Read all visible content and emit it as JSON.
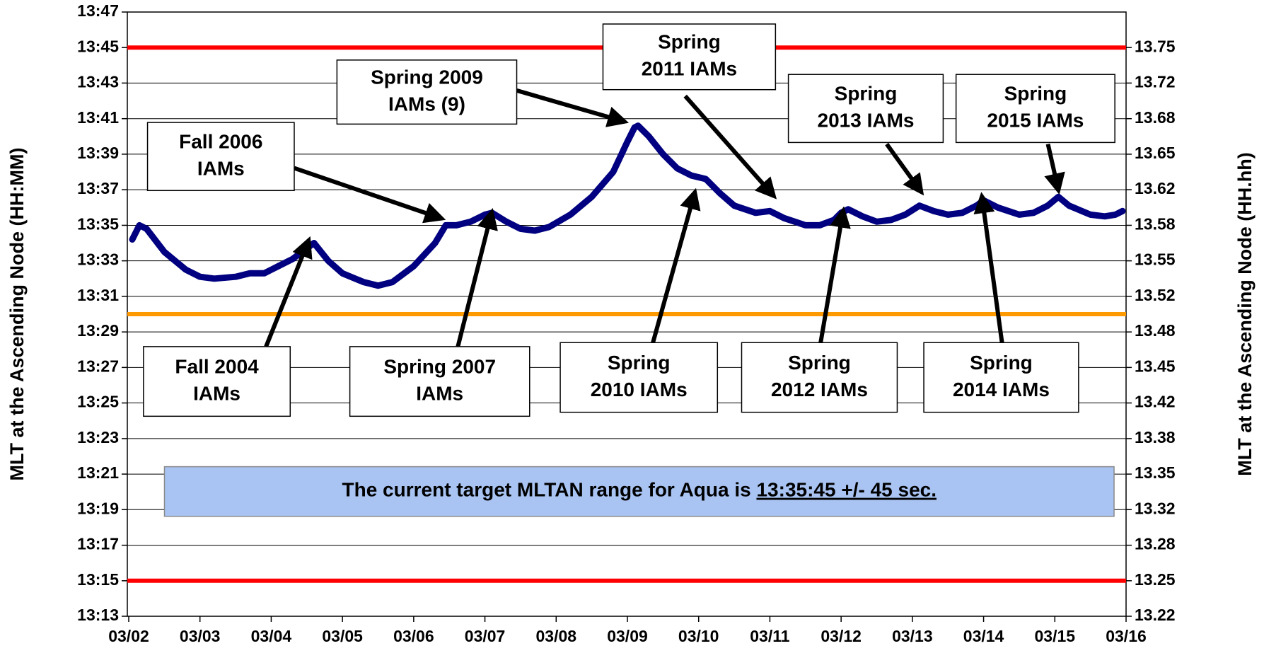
{
  "chart_data": {
    "type": "line",
    "ylabel": "MLT at the Ascending Node (HH:MM)",
    "y2label": "MLT at the Ascending Node (HH.hh)",
    "xlim": [
      0,
      14
    ],
    "xticks": [
      {
        "value": 0,
        "label": "03/02"
      },
      {
        "value": 1,
        "label": "03/03"
      },
      {
        "value": 2,
        "label": "03/04"
      },
      {
        "value": 3,
        "label": "03/05"
      },
      {
        "value": 4,
        "label": "03/06"
      },
      {
        "value": 5,
        "label": "03/07"
      },
      {
        "value": 6,
        "label": "03/08"
      },
      {
        "value": 7,
        "label": "03/09"
      },
      {
        "value": 8,
        "label": "03/10"
      },
      {
        "value": 9,
        "label": "03/11"
      },
      {
        "value": 10,
        "label": "03/12"
      },
      {
        "value": 11,
        "label": "03/13"
      },
      {
        "value": 12,
        "label": "03/14"
      },
      {
        "value": 13,
        "label": "03/15"
      },
      {
        "value": 14,
        "label": "03/16"
      }
    ],
    "ylim": [
      13.2167,
      13.7833
    ],
    "yticks": [
      {
        "value": 13.2167,
        "label": "13:13"
      },
      {
        "value": 13.25,
        "label": "13:15"
      },
      {
        "value": 13.2833,
        "label": "13:17"
      },
      {
        "value": 13.3167,
        "label": "13:19"
      },
      {
        "value": 13.35,
        "label": "13:21"
      },
      {
        "value": 13.3833,
        "label": "13:23"
      },
      {
        "value": 13.4167,
        "label": "13:25"
      },
      {
        "value": 13.45,
        "label": "13:27"
      },
      {
        "value": 13.4833,
        "label": "13:29"
      },
      {
        "value": 13.5167,
        "label": "13:31"
      },
      {
        "value": 13.55,
        "label": "13:33"
      },
      {
        "value": 13.5833,
        "label": "13:35"
      },
      {
        "value": 13.6167,
        "label": "13:37"
      },
      {
        "value": 13.65,
        "label": "13:39"
      },
      {
        "value": 13.6833,
        "label": "13:41"
      },
      {
        "value": 13.7167,
        "label": "13:43"
      },
      {
        "value": 13.75,
        "label": "13:45"
      },
      {
        "value": 13.7833,
        "label": "13:47"
      }
    ],
    "y2lim": [
      13.2167,
      13.7833
    ],
    "y2ticks": [
      {
        "value": 13.2167,
        "label": "13.22"
      },
      {
        "value": 13.25,
        "label": "13.25"
      },
      {
        "value": 13.2833,
        "label": "13.28"
      },
      {
        "value": 13.3167,
        "label": "13.32"
      },
      {
        "value": 13.35,
        "label": "13.35"
      },
      {
        "value": 13.3833,
        "label": "13.38"
      },
      {
        "value": 13.4167,
        "label": "13.42"
      },
      {
        "value": 13.45,
        "label": "13.45"
      },
      {
        "value": 13.4833,
        "label": "13.48"
      },
      {
        "value": 13.5167,
        "label": "13.52"
      },
      {
        "value": 13.55,
        "label": "13.55"
      },
      {
        "value": 13.5833,
        "label": "13.58"
      },
      {
        "value": 13.6167,
        "label": "13.62"
      },
      {
        "value": 13.65,
        "label": "13.65"
      },
      {
        "value": 13.6833,
        "label": "13.68"
      },
      {
        "value": 13.7167,
        "label": "13.72"
      },
      {
        "value": 13.75,
        "label": "13.75"
      }
    ],
    "grid": true,
    "reference_lines": [
      {
        "value": 13.75,
        "color": "#ff0000"
      },
      {
        "value": 13.5,
        "color": "#ff9900"
      },
      {
        "value": 13.25,
        "color": "#ff0000"
      }
    ],
    "series": [
      {
        "color": "#000080",
        "x": [
          0.05,
          0.15,
          0.25,
          0.5,
          0.8,
          1.0,
          1.2,
          1.5,
          1.7,
          1.9,
          2.1,
          2.3,
          2.5,
          2.6,
          2.8,
          3.0,
          3.3,
          3.5,
          3.7,
          4.0,
          4.3,
          4.45,
          4.6,
          4.8,
          5.0,
          5.1,
          5.3,
          5.5,
          5.7,
          5.9,
          6.2,
          6.5,
          6.8,
          7.0,
          7.1,
          7.15,
          7.3,
          7.5,
          7.7,
          7.9,
          8.1,
          8.3,
          8.5,
          8.8,
          9.0,
          9.2,
          9.5,
          9.7,
          9.9,
          10.0,
          10.1,
          10.3,
          10.5,
          10.7,
          10.9,
          11.1,
          11.3,
          11.5,
          11.7,
          11.9,
          12.0,
          12.2,
          12.5,
          12.7,
          12.9,
          13.05,
          13.2,
          13.5,
          13.7,
          13.85,
          13.95
        ],
        "values": [
          13.57,
          13.5833,
          13.58,
          13.5583,
          13.5417,
          13.535,
          13.5333,
          13.535,
          13.5383,
          13.5383,
          13.545,
          13.5517,
          13.5617,
          13.5667,
          13.55,
          13.5383,
          13.53,
          13.5267,
          13.53,
          13.545,
          13.5667,
          13.5833,
          13.5833,
          13.5867,
          13.5933,
          13.595,
          13.5867,
          13.58,
          13.5783,
          13.5817,
          13.5933,
          13.61,
          13.6333,
          13.6617,
          13.675,
          13.6767,
          13.6667,
          13.65,
          13.6367,
          13.63,
          13.6267,
          13.6133,
          13.6017,
          13.595,
          13.5967,
          13.59,
          13.5833,
          13.5833,
          13.5883,
          13.595,
          13.5983,
          13.5917,
          13.5867,
          13.5883,
          13.5933,
          13.6017,
          13.5967,
          13.5933,
          13.595,
          13.6017,
          13.6067,
          13.6,
          13.5933,
          13.595,
          13.6017,
          13.61,
          13.6017,
          13.5933,
          13.5917,
          13.5933,
          13.5967
        ]
      }
    ],
    "annotations": [
      {
        "lines": [
          "Fall 2006",
          "IAMs"
        ]
      },
      {
        "lines": [
          "Spring 2009",
          "IAMs (9)"
        ]
      },
      {
        "lines": [
          "Spring",
          "2011 IAMs"
        ]
      },
      {
        "lines": [
          "Spring",
          "2013 IAMs"
        ]
      },
      {
        "lines": [
          "Spring",
          "2015 IAMs"
        ]
      },
      {
        "lines": [
          "Fall 2004",
          "IAMs"
        ]
      },
      {
        "lines": [
          "Spring 2007",
          "IAMs"
        ]
      },
      {
        "lines": [
          "Spring",
          "2010 IAMs"
        ]
      },
      {
        "lines": [
          "Spring",
          "2012 IAMs"
        ]
      },
      {
        "lines": [
          "Spring",
          "2014 IAMs"
        ]
      }
    ],
    "note": {
      "text": "The current target MLTAN range for Aqua is ",
      "emphasis": "13:35:45 +/- 45 sec."
    }
  }
}
